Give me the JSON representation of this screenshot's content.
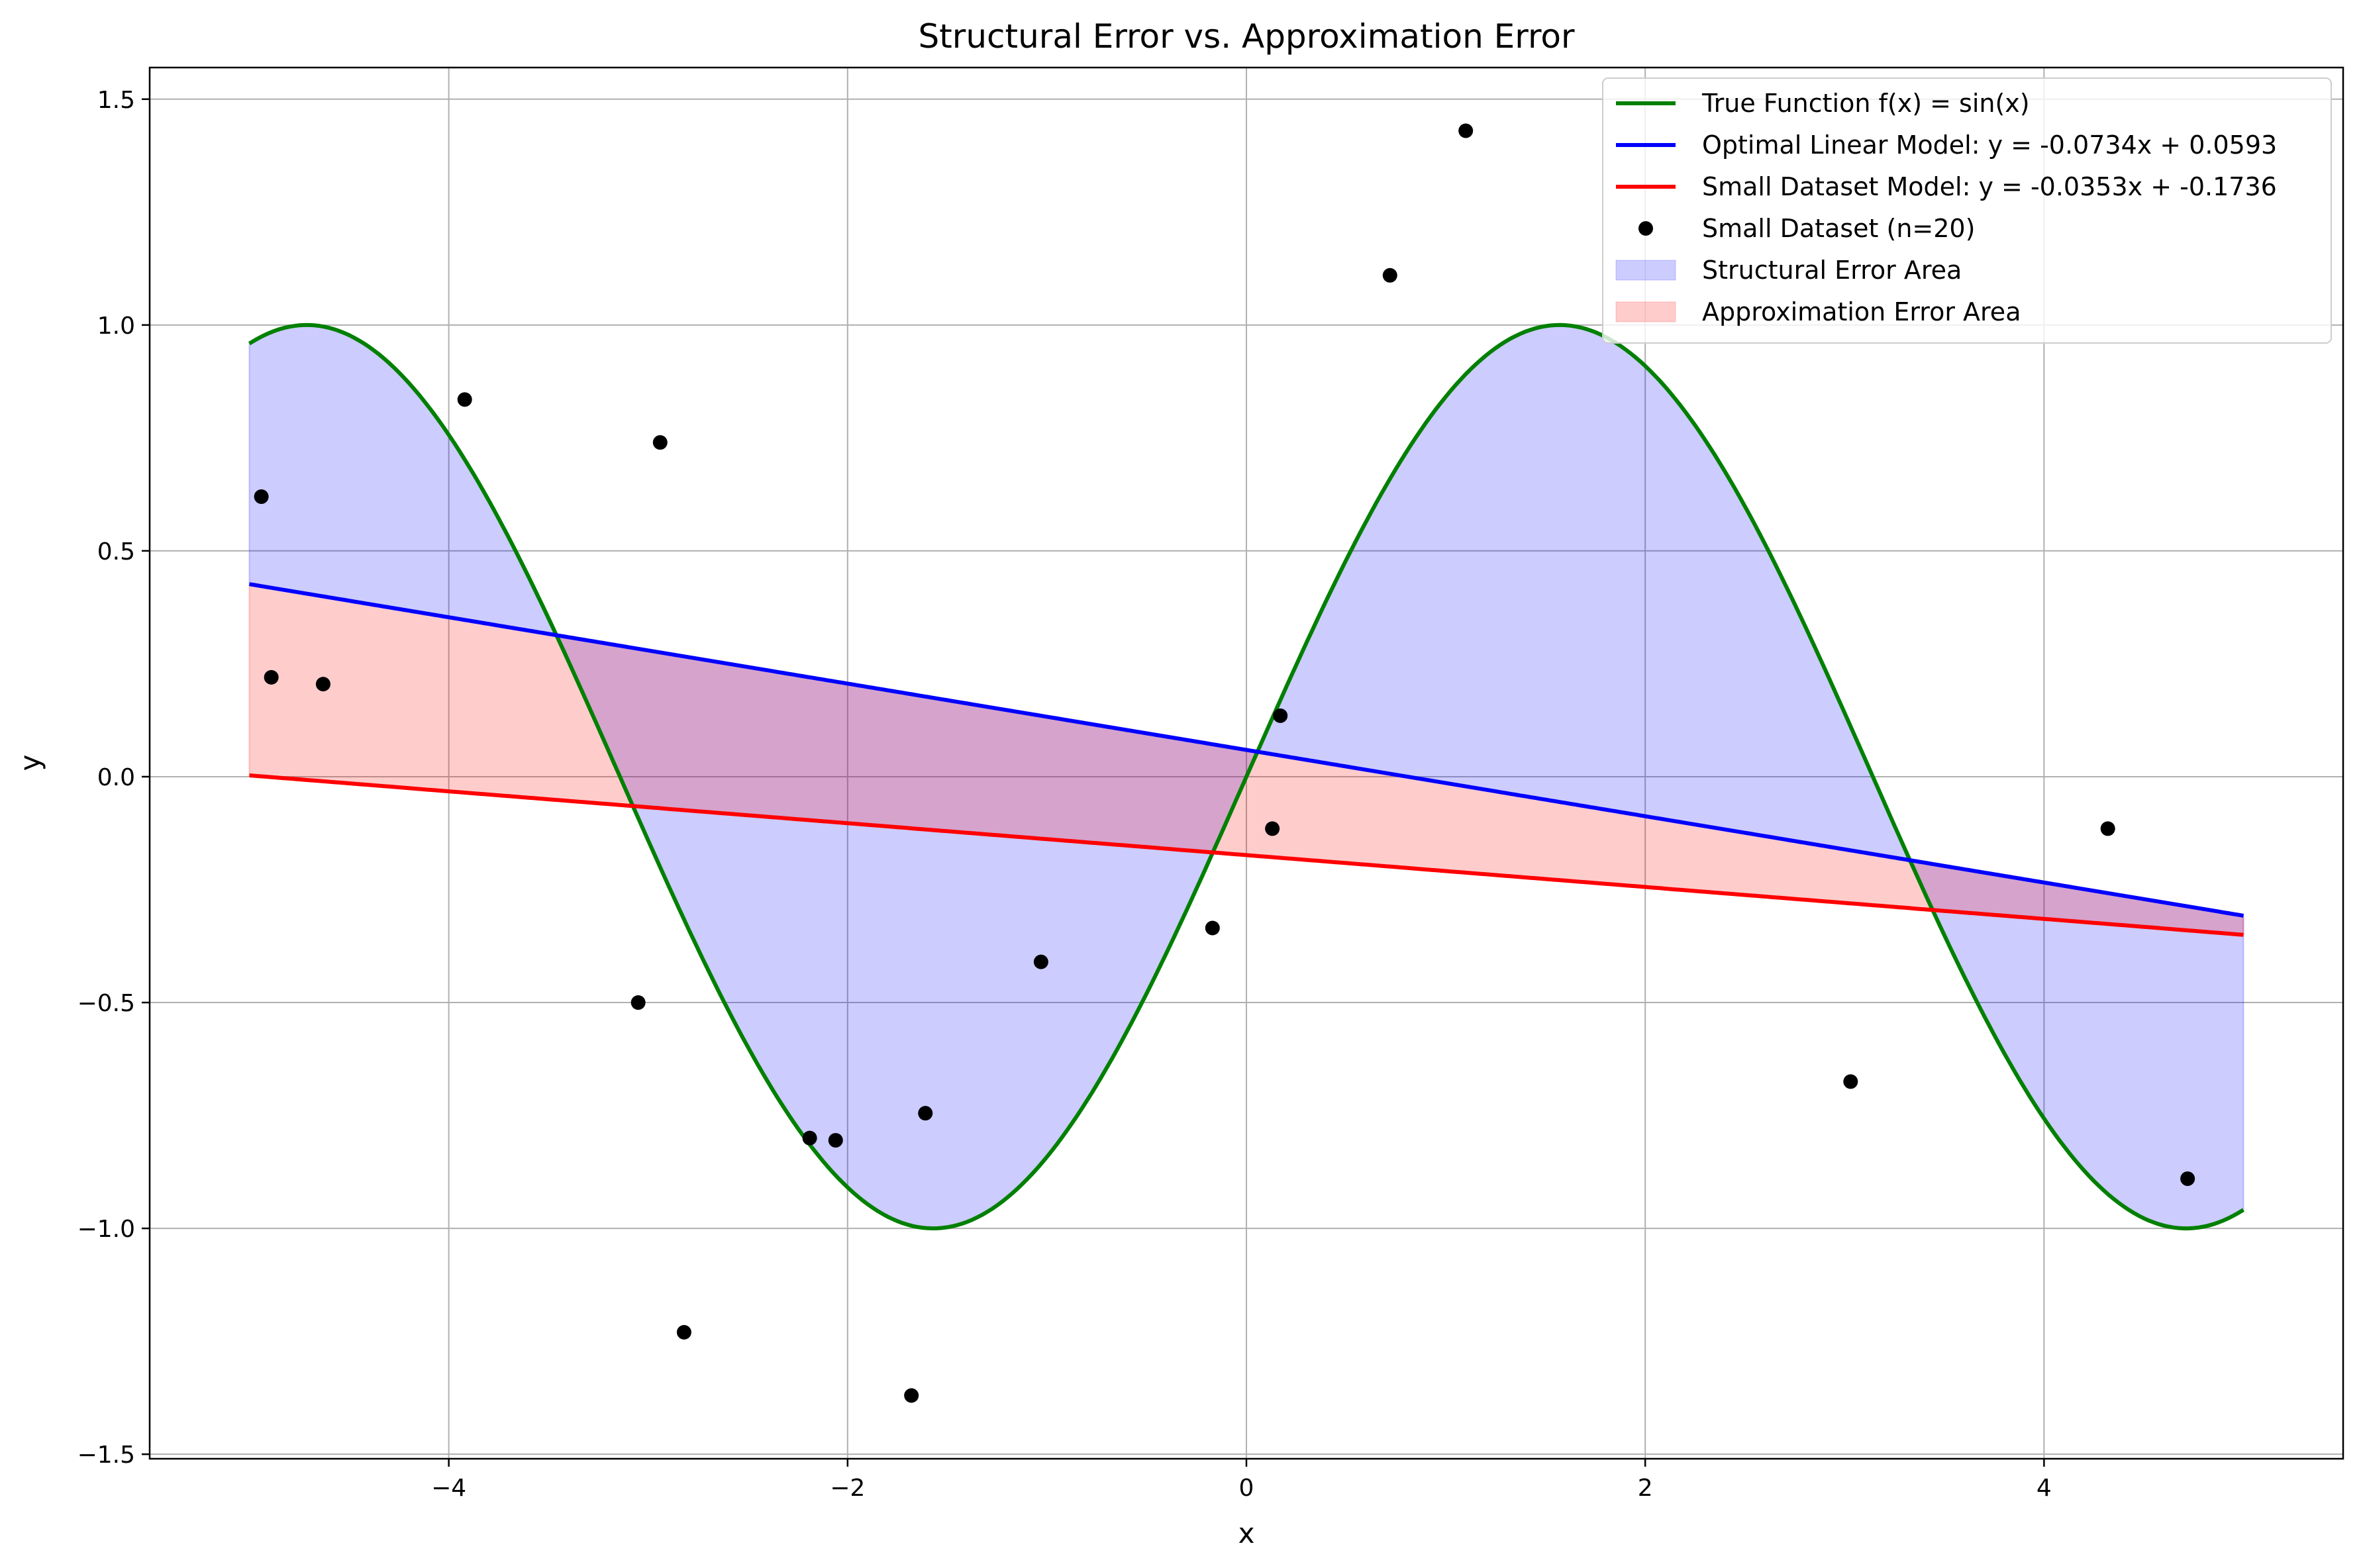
{
  "chart_data": {
    "type": "line",
    "title": "Structural Error vs. Approximation Error",
    "xlabel": "x",
    "ylabel": "y",
    "xlim": [
      -5.5,
      5.5
    ],
    "ylim": [
      -1.51,
      1.57
    ],
    "xticks": [
      -4,
      -2,
      0,
      2,
      4
    ],
    "yticks": [
      -1.5,
      -1.0,
      -0.5,
      0.0,
      0.5,
      1.0,
      1.5
    ],
    "xtick_labels": [
      "−4",
      "−2",
      "0",
      "2",
      "4"
    ],
    "ytick_labels": [
      "−1.5",
      "−1.0",
      "−0.5",
      "0.0",
      "0.5",
      "1.0",
      "1.5"
    ],
    "grid": true,
    "legend_position": "top-right",
    "x_range": [
      -5,
      5
    ],
    "series": [
      {
        "name": "True Function f(x) = sin(x)",
        "kind": "function",
        "function": "sin",
        "color": "#008000"
      },
      {
        "name": "Optimal Linear Model: y = -0.0734x + 0.0593",
        "kind": "linear",
        "slope": -0.0734,
        "intercept": 0.0593,
        "color": "#0000ff"
      },
      {
        "name": "Small Dataset Model: y = -0.0353x + -0.1736",
        "kind": "linear",
        "slope": -0.0353,
        "intercept": -0.1736,
        "color": "#ff0000"
      },
      {
        "name": "Small Dataset (n=20)",
        "kind": "scatter",
        "color": "#000000",
        "points": [
          [
            -4.94,
            0.62
          ],
          [
            -4.89,
            0.22
          ],
          [
            -4.63,
            0.205
          ],
          [
            -3.92,
            0.835
          ],
          [
            -3.05,
            -0.5
          ],
          [
            -2.94,
            0.74
          ],
          [
            -2.82,
            -1.23
          ],
          [
            -2.19,
            -0.8
          ],
          [
            -2.06,
            -0.805
          ],
          [
            -1.68,
            -1.37
          ],
          [
            -1.61,
            -0.745
          ],
          [
            -1.03,
            -0.41
          ],
          [
            -0.17,
            -0.335
          ],
          [
            0.13,
            -0.115
          ],
          [
            0.17,
            0.135
          ],
          [
            0.72,
            1.11
          ],
          [
            1.1,
            1.43
          ],
          [
            3.03,
            -0.675
          ],
          [
            4.32,
            -0.115
          ],
          [
            4.72,
            -0.89
          ]
        ]
      },
      {
        "name": "Structural Error Area",
        "kind": "fill_between",
        "between": [
          "True Function f(x) = sin(x)",
          "Optimal Linear Model: y = -0.0734x + 0.0593"
        ],
        "color": "#0000ff",
        "alpha": 0.2
      },
      {
        "name": "Approximation Error Area",
        "kind": "fill_between",
        "between": [
          "Optimal Linear Model: y = -0.0734x + 0.0593",
          "Small Dataset Model: y = -0.0353x + -0.1736"
        ],
        "color": "#ff0000",
        "alpha": 0.2
      }
    ]
  }
}
